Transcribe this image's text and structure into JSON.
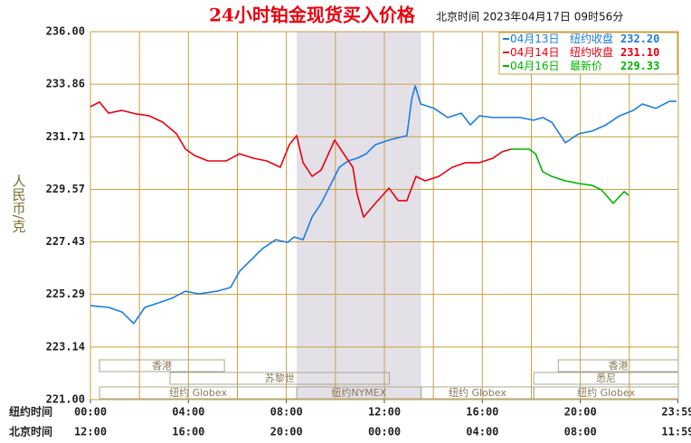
{
  "chart_data": {
    "type": "line",
    "title": "24小时铂金现货买入价格",
    "subtitle": "北京时间  2023年04月17日 09时56分",
    "y_label": "人民币/克",
    "x_row_labels": [
      "纽约时间",
      "北京时间"
    ],
    "xlim": [
      0,
      24
    ],
    "ylim": [
      221,
      236
    ],
    "yticks": [
      {
        "value": 221,
        "label": "221.00"
      },
      223.14,
      225.29,
      227.43,
      229.57,
      231.71,
      233.86,
      {
        "value": 236,
        "label": "236.00"
      }
    ],
    "xticks": [
      {
        "value": 0,
        "label": "00:00"
      },
      {
        "value": 4,
        "label": "04:00"
      },
      {
        "value": 8,
        "label": "08:00"
      },
      {
        "value": 12,
        "label": "12:00"
      },
      {
        "value": 16,
        "label": "16:00"
      },
      {
        "value": 20,
        "label": "20:00"
      },
      {
        "value": 23.98,
        "label": "23:59"
      }
    ],
    "x_labels_beijing": [
      "12:00",
      "16:00",
      "20:00",
      "00:00",
      "04:00",
      "08:00",
      "11:59"
    ],
    "xgrid": [
      2,
      4,
      6,
      8,
      10,
      12,
      14,
      16,
      18,
      20,
      22
    ],
    "grid": true,
    "highlight": [
      8.42,
      13.5
    ],
    "sessions": [
      {
        "label": "香港",
        "start": 0.37,
        "end": 5.47
      },
      {
        "label": "苏黎世",
        "start": 3.25,
        "end": 12.2
      },
      {
        "label": "纽约 Globex",
        "start": 0.37,
        "end": 8.42
      },
      {
        "label": "纽约NYMEX",
        "start": 8.42,
        "end": 13.5
      },
      {
        "label": "纽约 Globex",
        "start": 13.5,
        "end": 18.1
      },
      {
        "label": "香港",
        "start": 19.1,
        "end": 24
      },
      {
        "label": "悉尼",
        "start": 18.1,
        "end": 24
      },
      {
        "label": "纽约 Globex",
        "start": 18.1,
        "end": 24
      }
    ],
    "series": [
      {
        "name": "04月13日",
        "legend_note": "纽约收盘",
        "last_value": 232.2,
        "last_value_label": "232.20",
        "color": "#1c7ce0",
        "x": [
          0,
          0.74,
          1.29,
          1.77,
          2.22,
          2.77,
          3.32,
          3.88,
          4.43,
          5.17,
          5.72,
          6.09,
          6.46,
          7.02,
          7.57,
          8.05,
          8.31,
          8.68,
          9.05,
          9.42,
          9.79,
          10.16,
          10.52,
          10.89,
          11.26,
          11.63,
          12.19,
          12.92,
          13.11,
          13.26,
          13.48,
          14.03,
          14.59,
          15.14,
          15.51,
          15.88,
          16.43,
          16.99,
          17.54,
          18.09,
          18.46,
          18.83,
          19.39,
          19.94,
          20.49,
          21.05,
          21.6,
          22.16,
          22.53,
          23.08,
          23.63,
          23.93
        ],
        "values": [
          224.83,
          224.76,
          224.57,
          224.1,
          224.76,
          224.94,
          225.13,
          225.42,
          225.31,
          225.42,
          225.57,
          226.23,
          226.6,
          227.15,
          227.52,
          227.41,
          227.63,
          227.52,
          228.45,
          229.0,
          229.73,
          230.47,
          230.73,
          230.84,
          231.02,
          231.39,
          231.58,
          231.76,
          233.24,
          233.79,
          233.05,
          232.87,
          232.5,
          232.68,
          232.2,
          232.57,
          232.5,
          232.5,
          232.5,
          232.39,
          232.5,
          232.31,
          231.47,
          231.84,
          231.95,
          232.2,
          232.57,
          232.79,
          233.05,
          232.87,
          233.16,
          233.16
        ]
      },
      {
        "name": "04月14日",
        "legend_note": "纽约收盘",
        "last_value": 231.1,
        "last_value_label": "231.10",
        "color": "#e8000e",
        "x": [
          0,
          0.37,
          0.74,
          1.29,
          1.85,
          2.4,
          2.95,
          3.51,
          3.88,
          4.25,
          4.8,
          5.54,
          6.09,
          6.65,
          7.2,
          7.75,
          8.12,
          8.42,
          8.68,
          9.05,
          9.42,
          9.97,
          10.34,
          10.71,
          10.89,
          11.15,
          11.63,
          12.19,
          12.56,
          12.92,
          13.29,
          13.66,
          14.22,
          14.77,
          15.32,
          15.88,
          16.43,
          16.8,
          17.17
        ],
        "values": [
          232.94,
          233.13,
          232.68,
          232.79,
          232.65,
          232.57,
          232.31,
          231.84,
          231.21,
          230.95,
          230.73,
          230.73,
          231.02,
          230.84,
          230.73,
          230.47,
          231.39,
          231.76,
          230.66,
          230.1,
          230.36,
          231.58,
          231.02,
          230.47,
          229.37,
          228.44,
          229.0,
          229.62,
          229.11,
          229.11,
          230.1,
          229.92,
          230.1,
          230.47,
          230.66,
          230.66,
          230.84,
          231.1,
          231.21
        ]
      },
      {
        "name": "04月16日",
        "legend_note": "最新价",
        "last_value": 229.33,
        "last_value_label": "229.33",
        "color": "#00b400",
        "x": [
          17.17,
          17.91,
          18.17,
          18.46,
          18.83,
          19.39,
          19.94,
          20.49,
          20.86,
          21.34,
          21.79,
          21.97
        ],
        "values": [
          231.21,
          231.21,
          231.02,
          230.29,
          230.1,
          229.92,
          229.81,
          229.73,
          229.55,
          229.0,
          229.48,
          229.33
        ]
      }
    ]
  }
}
